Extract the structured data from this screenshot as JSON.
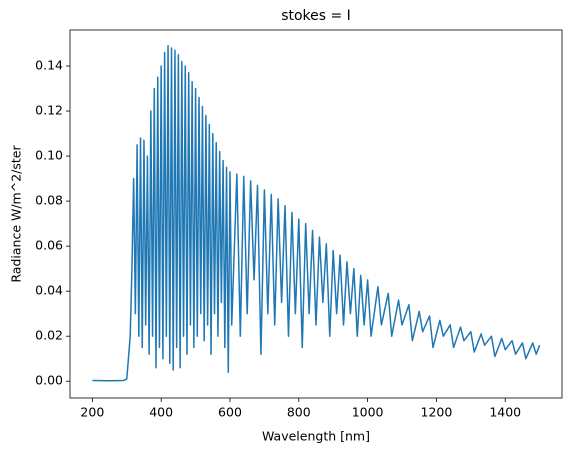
{
  "chart_data": {
    "type": "line",
    "title": "stokes = I",
    "xlabel": "Wavelength [nm]",
    "ylabel": "Radiance W/m^2/ster",
    "color": "#1f77b4",
    "xlim": [
      135,
      1565
    ],
    "ylim": [
      -0.00745,
      0.156
    ],
    "xticks": [
      200,
      400,
      600,
      800,
      1000,
      1200,
      1400
    ],
    "yticks": [
      {
        "value": 0,
        "label": "0.00"
      },
      {
        "value": 0.02,
        "label": "0.02"
      },
      {
        "value": 0.04,
        "label": "0.04"
      },
      {
        "value": 0.06,
        "label": "0.06"
      },
      {
        "value": 0.08,
        "label": "0.08"
      },
      {
        "value": 0.1,
        "label": "0.10"
      },
      {
        "value": 0.12,
        "label": "0.12"
      },
      {
        "value": 0.14,
        "label": "0.14"
      }
    ],
    "x": [
      200,
      250,
      290,
      300,
      310,
      315,
      320,
      325,
      330,
      335,
      340,
      345,
      350,
      355,
      360,
      365,
      370,
      375,
      380,
      385,
      390,
      395,
      400,
      405,
      410,
      415,
      420,
      425,
      430,
      435,
      440,
      445,
      450,
      455,
      460,
      465,
      470,
      475,
      480,
      485,
      490,
      495,
      500,
      505,
      510,
      515,
      520,
      525,
      530,
      535,
      540,
      545,
      550,
      555,
      560,
      565,
      570,
      575,
      580,
      585,
      590,
      595,
      600,
      605,
      620,
      630,
      640,
      650,
      660,
      670,
      680,
      690,
      700,
      710,
      720,
      730,
      740,
      750,
      760,
      770,
      780,
      790,
      800,
      810,
      820,
      830,
      840,
      850,
      860,
      870,
      880,
      890,
      900,
      910,
      920,
      930,
      940,
      950,
      960,
      970,
      980,
      990,
      1000,
      1010,
      1030,
      1040,
      1060,
      1070,
      1090,
      1100,
      1120,
      1130,
      1150,
      1160,
      1180,
      1190,
      1210,
      1220,
      1240,
      1250,
      1270,
      1280,
      1300,
      1310,
      1330,
      1340,
      1360,
      1370,
      1390,
      1400,
      1420,
      1430,
      1450,
      1460,
      1480,
      1490,
      1500
    ],
    "values": [
      0.0003,
      0.0002,
      0.0003,
      0.001,
      0.02,
      0.05,
      0.09,
      0.03,
      0.105,
      0.02,
      0.108,
      0.015,
      0.107,
      0.025,
      0.1,
      0.012,
      0.12,
      0.02,
      0.13,
      0.006,
      0.135,
      0.015,
      0.14,
      0.01,
      0.146,
      0.02,
      0.149,
      0.008,
      0.148,
      0.005,
      0.147,
      0.015,
      0.145,
      0.006,
      0.142,
      0.02,
      0.14,
      0.012,
      0.137,
      0.025,
      0.133,
      0.015,
      0.13,
      0.02,
      0.126,
      0.03,
      0.122,
      0.018,
      0.118,
      0.025,
      0.114,
      0.012,
      0.11,
      0.03,
      0.106,
      0.02,
      0.102,
      0.035,
      0.098,
      0.015,
      0.095,
      0.004,
      0.093,
      0.025,
      0.092,
      0.02,
      0.091,
      0.03,
      0.089,
      0.045,
      0.087,
      0.012,
      0.085,
      0.03,
      0.083,
      0.025,
      0.081,
      0.035,
      0.078,
      0.02,
      0.075,
      0.03,
      0.072,
      0.015,
      0.07,
      0.03,
      0.067,
      0.025,
      0.064,
      0.035,
      0.061,
      0.02,
      0.058,
      0.03,
      0.056,
      0.025,
      0.053,
      0.03,
      0.05,
      0.02,
      0.047,
      0.025,
      0.045,
      0.02,
      0.042,
      0.025,
      0.039,
      0.02,
      0.036,
      0.025,
      0.034,
      0.018,
      0.031,
      0.022,
      0.029,
      0.015,
      0.027,
      0.02,
      0.025,
      0.015,
      0.024,
      0.018,
      0.022,
      0.013,
      0.021,
      0.016,
      0.02,
      0.011,
      0.019,
      0.014,
      0.018,
      0.012,
      0.017,
      0.01,
      0.017,
      0.012,
      0.016
    ]
  }
}
